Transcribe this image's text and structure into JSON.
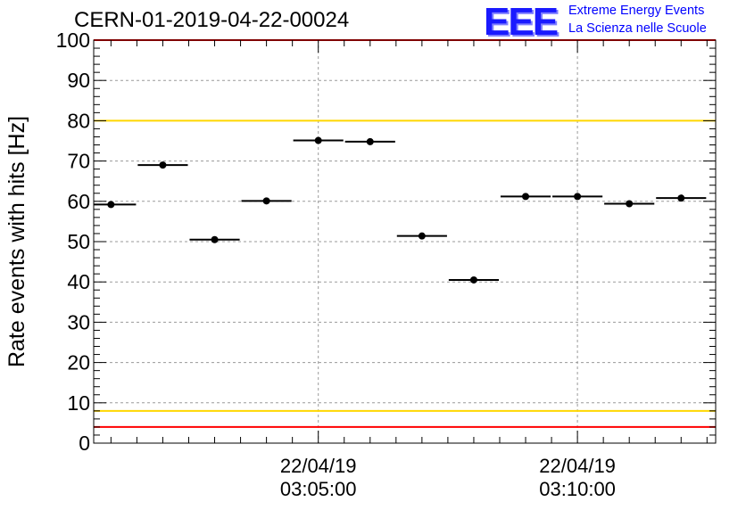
{
  "title": "CERN-01-2019-04-22-00024",
  "logo": {
    "mark": "EEE",
    "line1": "Extreme Energy Events",
    "line2": "La Scienza nelle Scuole"
  },
  "colors": {
    "red_limit": "#ff0000",
    "yellow_limit": "#ffd700",
    "points": "#000000",
    "grid": "#9a9a9a",
    "logo": "#0000ff"
  },
  "chart_data": {
    "type": "scatter",
    "title": "CERN-01-2019-04-22-00024",
    "ylabel": "Rate events with hits [Hz]",
    "xlabel": "",
    "ylim": [
      0,
      100
    ],
    "y_ticks": [
      0,
      10,
      20,
      30,
      40,
      50,
      60,
      70,
      80,
      90,
      100
    ],
    "x_range": [
      "2019-04-22T03:00:40",
      "2019-04-22T03:12:40"
    ],
    "x_ticks": [
      {
        "time": "2019-04-22T03:05:00",
        "date": "22/04/19",
        "clock": "03:05:00"
      },
      {
        "time": "2019-04-22T03:10:00",
        "date": "22/04/19",
        "clock": "03:10:00"
      }
    ],
    "grid": true,
    "reference_lines": [
      {
        "y": 100,
        "color": "#ff0000"
      },
      {
        "y": 80,
        "color": "#ffd700"
      },
      {
        "y": 8,
        "color": "#ffd700"
      },
      {
        "y": 4,
        "color": "#ff0000"
      }
    ],
    "series": [
      {
        "points": [
          {
            "x": "2019-04-22T03:01:00",
            "y": 59.2
          },
          {
            "x": "2019-04-22T03:02:00",
            "y": 69.0
          },
          {
            "x": "2019-04-22T03:03:00",
            "y": 50.5
          },
          {
            "x": "2019-04-22T03:04:00",
            "y": 60.1
          },
          {
            "x": "2019-04-22T03:05:00",
            "y": 75.1
          },
          {
            "x": "2019-04-22T03:06:00",
            "y": 74.8
          },
          {
            "x": "2019-04-22T03:07:00",
            "y": 51.4
          },
          {
            "x": "2019-04-22T03:08:00",
            "y": 40.5
          },
          {
            "x": "2019-04-22T03:09:00",
            "y": 61.2
          },
          {
            "x": "2019-04-22T03:10:00",
            "y": 61.2
          },
          {
            "x": "2019-04-22T03:11:00",
            "y": 59.4
          },
          {
            "x": "2019-04-22T03:12:00",
            "y": 60.8
          }
        ]
      }
    ]
  }
}
